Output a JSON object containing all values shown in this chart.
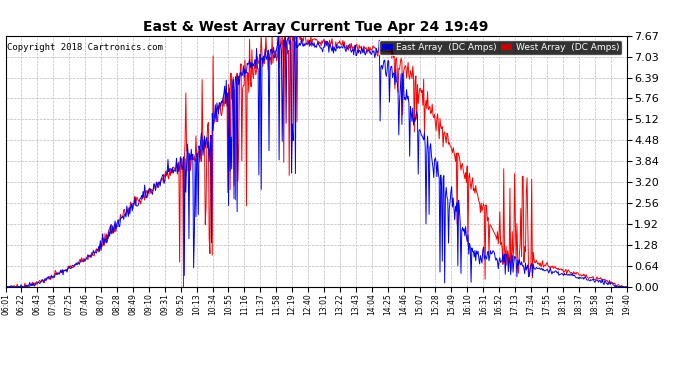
{
  "title": "East & West Array Current Tue Apr 24 19:49",
  "copyright": "Copyright 2018 Cartronics.com",
  "legend_east": "East Array  (DC Amps)",
  "legend_west": "West Array  (DC Amps)",
  "east_color": "#0000ff",
  "west_color": "#ff0000",
  "legend_east_bg": "#0000cc",
  "legend_west_bg": "#cc0000",
  "bg_color": "#ffffff",
  "plot_bg": "#ffffff",
  "grid_color": "#bbbbbb",
  "ylim": [
    0.0,
    7.67
  ],
  "yticks": [
    0.0,
    0.64,
    1.28,
    1.92,
    2.56,
    3.2,
    3.84,
    4.48,
    5.12,
    5.76,
    6.39,
    7.03,
    7.67
  ],
  "xtick_labels": [
    "06:01",
    "06:22",
    "06:43",
    "07:04",
    "07:25",
    "07:46",
    "08:07",
    "08:28",
    "08:49",
    "09:10",
    "09:31",
    "09:52",
    "10:13",
    "10:34",
    "10:55",
    "11:16",
    "11:37",
    "11:58",
    "12:19",
    "12:40",
    "13:01",
    "13:22",
    "13:43",
    "14:04",
    "14:25",
    "14:46",
    "15:07",
    "15:28",
    "15:49",
    "16:10",
    "16:31",
    "16:52",
    "17:13",
    "17:34",
    "17:55",
    "18:16",
    "18:37",
    "18:58",
    "19:19",
    "19:40"
  ]
}
